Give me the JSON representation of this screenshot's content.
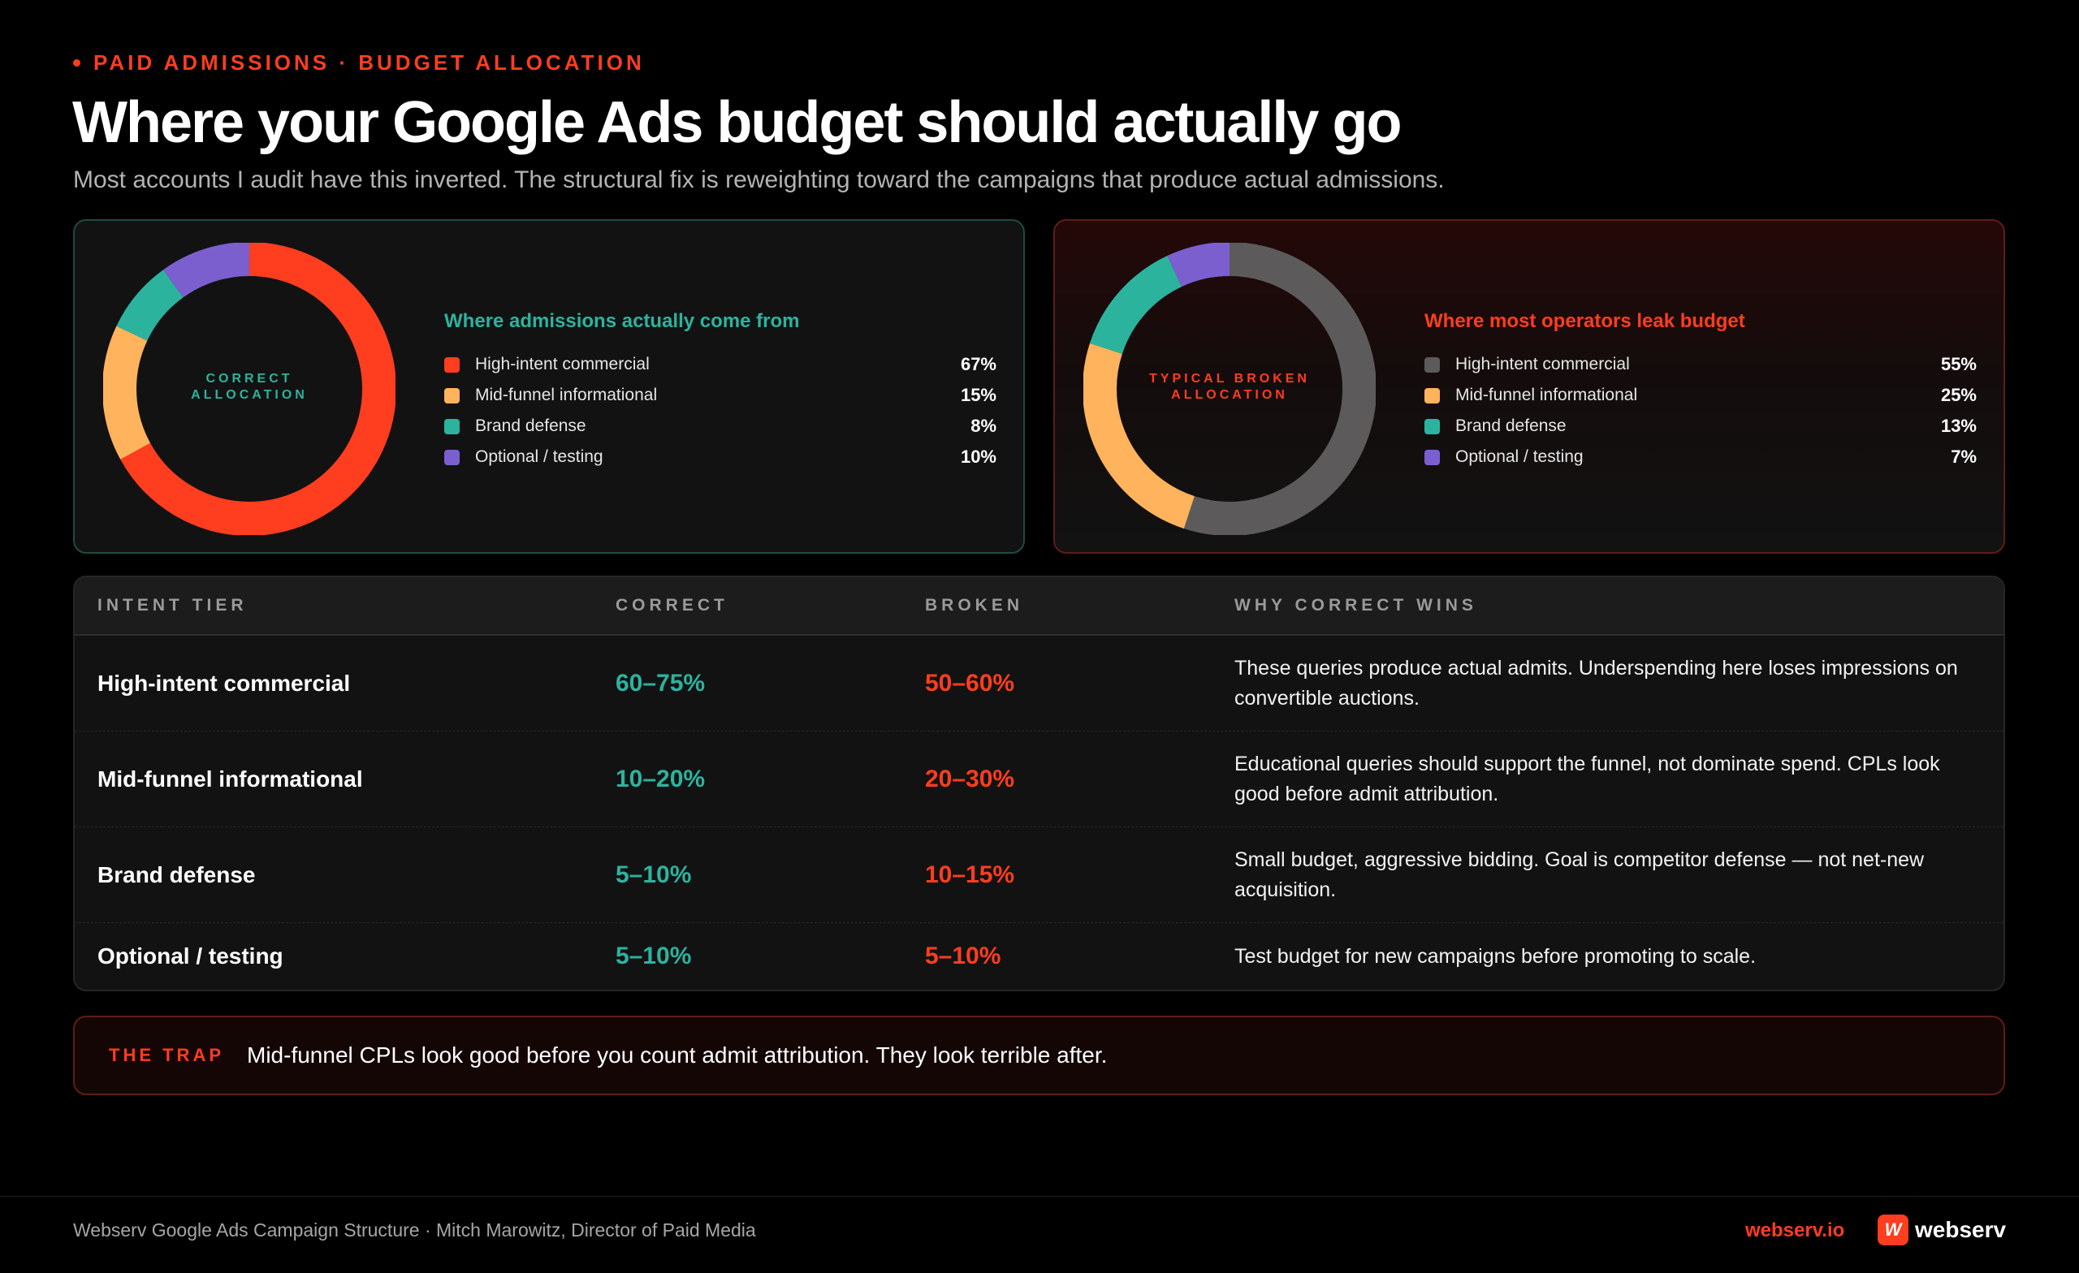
{
  "header": {
    "eyebrow": "PAID ADMISSIONS · BUDGET ALLOCATION",
    "title": "Where your Google Ads budget should actually go",
    "subtitle": "Most accounts I audit have this inverted. The structural fix is reweighting toward the campaigns that produce actual admissions."
  },
  "colors": {
    "accent_red": "#ff3d1f",
    "teal": "#2cb39e",
    "orange": "#ffb35c",
    "purple": "#7b5fcf",
    "gray": "#5c5a5a"
  },
  "chart_data": [
    {
      "type": "pie",
      "variant": "donut",
      "center_label_lines": [
        "CORRECT",
        "ALLOCATION"
      ],
      "title": "Where admissions actually come from",
      "slices": [
        {
          "label": "High-intent commercial",
          "value": 67,
          "display": "67%",
          "color": "#ff3d1f"
        },
        {
          "label": "Mid-funnel informational",
          "value": 15,
          "display": "15%",
          "color": "#ffb35c"
        },
        {
          "label": "Brand defense",
          "value": 8,
          "display": "8%",
          "color": "#2cb39e"
        },
        {
          "label": "Optional / testing",
          "value": 10,
          "display": "10%",
          "color": "#7b5fcf"
        }
      ]
    },
    {
      "type": "pie",
      "variant": "donut",
      "center_label_lines": [
        "TYPICAL BROKEN",
        "ALLOCATION"
      ],
      "title": "Where most operators leak budget",
      "slices": [
        {
          "label": "High-intent commercial",
          "value": 55,
          "display": "55%",
          "color": "#5c5a5a"
        },
        {
          "label": "Mid-funnel informational",
          "value": 25,
          "display": "25%",
          "color": "#ffb35c"
        },
        {
          "label": "Brand defense",
          "value": 13,
          "display": "13%",
          "color": "#2cb39e"
        },
        {
          "label": "Optional / testing",
          "value": 7,
          "display": "7%",
          "color": "#7b5fcf"
        }
      ]
    }
  ],
  "table": {
    "headers": [
      "INTENT TIER",
      "CORRECT",
      "BROKEN",
      "WHY CORRECT WINS"
    ],
    "rows": [
      {
        "tier": "High-intent commercial",
        "correct": "60–75%",
        "broken": "50–60%",
        "why": "These queries produce actual admits. Underspending here loses impressions on convertible auctions."
      },
      {
        "tier": "Mid-funnel informational",
        "correct": "10–20%",
        "broken": "20–30%",
        "why": "Educational queries should support the funnel, not dominate spend. CPLs look good before admit attribution."
      },
      {
        "tier": "Brand defense",
        "correct": "5–10%",
        "broken": "10–15%",
        "why": "Small budget, aggressive bidding. Goal is competitor defense — not net-new acquisition."
      },
      {
        "tier": "Optional / testing",
        "correct": "5–10%",
        "broken": "5–10%",
        "why": "Test budget for new campaigns before promoting to scale."
      }
    ]
  },
  "trap": {
    "label": "THE TRAP",
    "text": "Mid-funnel CPLs look good before you count admit attribution. They look terrible after."
  },
  "footer": {
    "credit": "Webserv Google Ads Campaign Structure · Mitch Marowitz, Director of Paid Media",
    "url": "webserv.io",
    "brand_name": "webserv",
    "brand_mark": "W"
  }
}
